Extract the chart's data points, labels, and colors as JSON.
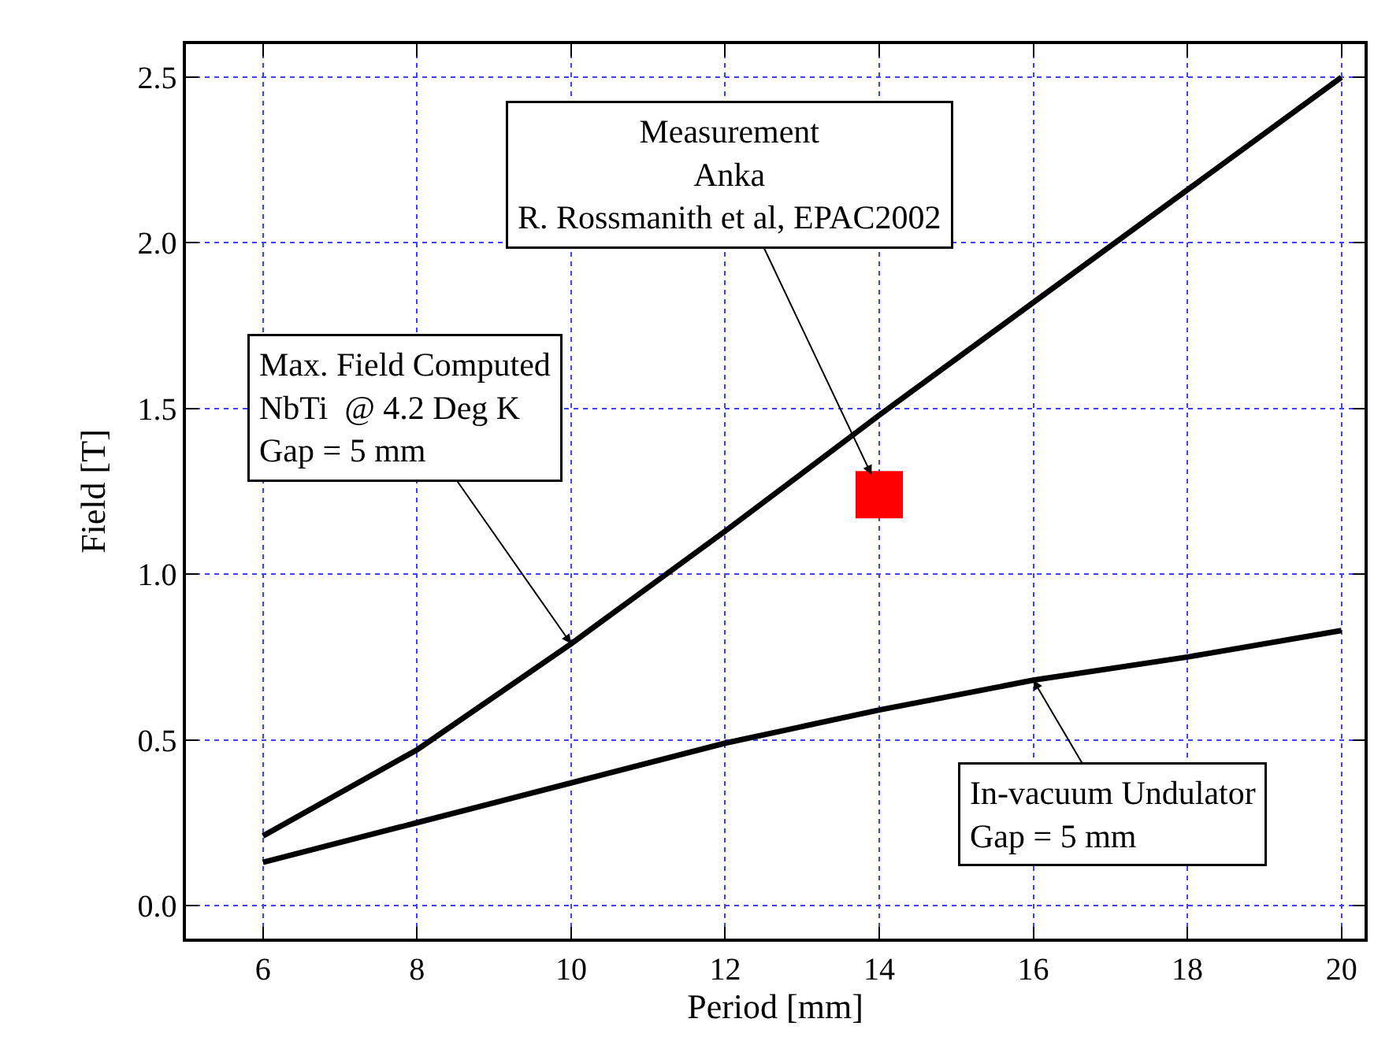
{
  "chart_data": {
    "type": "line",
    "xlabel": "Period [mm]",
    "ylabel": "Field [T]",
    "x": [
      6,
      8,
      10,
      12,
      14,
      16,
      18,
      20
    ],
    "series": [
      {
        "color": "#000000",
        "values": [
          0.21,
          0.47,
          0.79,
          1.13,
          1.48,
          1.82,
          2.16,
          2.5
        ]
      },
      {
        "color": "#000000",
        "values": [
          0.13,
          0.25,
          0.37,
          0.49,
          0.59,
          0.68,
          0.75,
          0.83
        ]
      },
      {
        "type": "scatter",
        "marker": "square",
        "color": "#ff0000",
        "x": [
          14
        ],
        "values": [
          1.24
        ]
      }
    ],
    "xlim": [
      5,
      20.3
    ],
    "ylim": [
      -0.1,
      2.6
    ],
    "xticks": [
      6,
      8,
      10,
      12,
      14,
      16,
      18,
      20
    ],
    "yticks": [
      {
        "value": 0,
        "label": "0.0"
      },
      0.5,
      {
        "value": 1,
        "label": "1.0"
      },
      1.5,
      {
        "value": 2,
        "label": "2.0"
      },
      2.5
    ],
    "grid": true,
    "marker": "none",
    "line_style": "solid",
    "annotations": [
      {
        "text": "Measurement\nAnka\nR. Rossmanith et al, EPAC2002",
        "x": 13.9,
        "y": 1.3
      },
      {
        "text": "Max. Field Computed\nNbTi  @ 4.2 Deg K\nGap = 5 mm",
        "x": 10,
        "y": 0.79
      },
      {
        "text": "In-vacuum Undulator\nGap = 5 mm",
        "x": 16,
        "y": 0.68
      }
    ]
  }
}
